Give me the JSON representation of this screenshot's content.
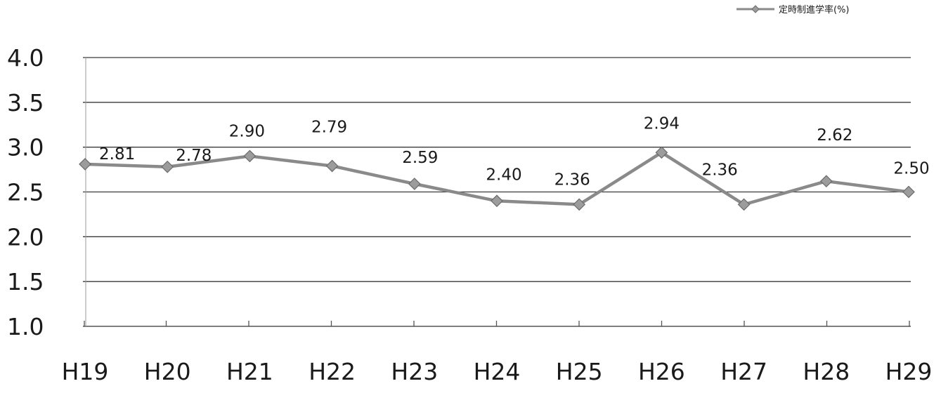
{
  "chart_data": {
    "type": "line",
    "title": "",
    "categories": [
      "H19",
      "H20",
      "H21",
      "H22",
      "H23",
      "H24",
      "H25",
      "H26",
      "H27",
      "H28",
      "H29"
    ],
    "series": [
      {
        "name": "定時制進学率(%)",
        "values": [
          2.81,
          2.78,
          2.9,
          2.79,
          2.59,
          2.4,
          2.36,
          2.94,
          2.36,
          2.62,
          2.5
        ],
        "labels": [
          "2.81",
          "2.78",
          "2.90",
          "2.79",
          "2.59",
          "2.40",
          "2.36",
          "2.94",
          "2.36",
          "2.62",
          "2.50"
        ],
        "color": "#8a8a8a",
        "marker_color": "#9c9c9c",
        "marker": "diamond"
      }
    ],
    "ylim": [
      1.0,
      4.0
    ],
    "yticks": [
      1.0,
      1.5,
      2.0,
      2.5,
      3.0,
      3.5,
      4.0
    ],
    "ytick_labels": [
      "1.0",
      "1.5",
      "2.0",
      "2.5",
      "3.0",
      "3.5",
      "4.0"
    ],
    "xlabel": "",
    "ylabel": "",
    "grid": true,
    "legend_position": "top-right",
    "colors": {
      "grid": "#3a3a3a",
      "axis": "#555555",
      "text": "#1a1a1a"
    }
  }
}
